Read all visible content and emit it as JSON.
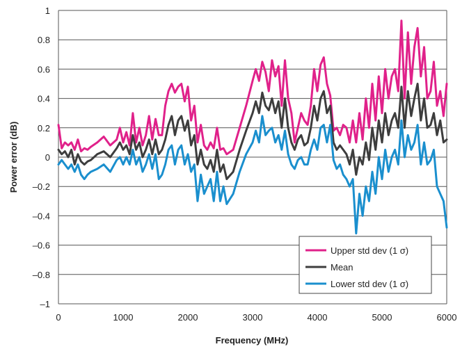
{
  "chart_data": {
    "type": "line",
    "title": "",
    "xlabel": "Frequency (MHz)",
    "ylabel": "Power error (dB)",
    "xlim": [
      0,
      6000
    ],
    "ylim": [
      -1,
      1
    ],
    "x_ticks": [
      0,
      1000,
      2000,
      3000,
      4000,
      5000,
      6000
    ],
    "x_tick_labels": [
      "0",
      "1000",
      "2000",
      "3000",
      "4000",
      "5000",
      "6000"
    ],
    "y_ticks": [
      1,
      0.8,
      0.6,
      0.4,
      0.2,
      0,
      -0.2,
      -0.4,
      -0.6,
      -0.8,
      -1
    ],
    "y_tick_labels": [
      "1",
      "0.8",
      "0.6",
      "0.4",
      "0.2",
      "0",
      "–0.2",
      "–0.4",
      "–0.6",
      "–0.8",
      "–1"
    ],
    "grid": "horizontal",
    "legend_position": "bottom-right",
    "x": [
      0,
      50,
      100,
      150,
      200,
      250,
      300,
      350,
      400,
      450,
      500,
      600,
      700,
      800,
      900,
      950,
      1000,
      1050,
      1100,
      1150,
      1200,
      1250,
      1300,
      1350,
      1400,
      1450,
      1500,
      1550,
      1600,
      1650,
      1700,
      1750,
      1800,
      1850,
      1900,
      1950,
      2000,
      2050,
      2100,
      2150,
      2200,
      2250,
      2300,
      2350,
      2400,
      2450,
      2500,
      2550,
      2600,
      2700,
      2800,
      2900,
      3000,
      3050,
      3100,
      3150,
      3200,
      3250,
      3300,
      3350,
      3400,
      3450,
      3500,
      3550,
      3600,
      3650,
      3700,
      3750,
      3800,
      3850,
      3900,
      3950,
      4000,
      4050,
      4100,
      4150,
      4200,
      4250,
      4300,
      4350,
      4400,
      4450,
      4500,
      4550,
      4600,
      4650,
      4700,
      4750,
      4800,
      4850,
      4900,
      4950,
      5000,
      5050,
      5100,
      5150,
      5200,
      5250,
      5300,
      5350,
      5400,
      5450,
      5500,
      5550,
      5600,
      5650,
      5700,
      5750,
      5800,
      5850,
      5900,
      5950,
      6000
    ],
    "series": [
      {
        "name": "Upper std dev (1 σ)",
        "color": "#e0218a",
        "values": [
          0.22,
          0.06,
          0.1,
          0.08,
          0.1,
          0.05,
          0.12,
          0.04,
          0.06,
          0.05,
          0.07,
          0.1,
          0.14,
          0.08,
          0.12,
          0.2,
          0.1,
          0.17,
          0.08,
          0.3,
          0.1,
          0.2,
          0.08,
          0.15,
          0.28,
          0.12,
          0.26,
          0.15,
          0.15,
          0.35,
          0.45,
          0.5,
          0.44,
          0.48,
          0.5,
          0.38,
          0.48,
          0.25,
          0.35,
          0.1,
          0.22,
          0.08,
          0.05,
          0.1,
          0.06,
          0.2,
          0.05,
          0.06,
          0.02,
          0.05,
          0.2,
          0.35,
          0.52,
          0.6,
          0.52,
          0.65,
          0.58,
          0.45,
          0.66,
          0.55,
          0.62,
          0.35,
          0.66,
          0.4,
          0.3,
          0.1,
          0.2,
          0.3,
          0.25,
          0.22,
          0.35,
          0.6,
          0.45,
          0.63,
          0.68,
          0.5,
          0.42,
          0.18,
          0.2,
          0.15,
          0.22,
          0.2,
          0.1,
          0.25,
          0.1,
          0.3,
          0.12,
          0.4,
          0.2,
          0.5,
          0.25,
          0.55,
          0.3,
          0.6,
          0.4,
          0.55,
          0.6,
          0.45,
          0.93,
          0.4,
          0.85,
          0.5,
          0.75,
          0.88,
          0.55,
          0.75,
          0.4,
          0.45,
          0.65,
          0.35,
          0.45,
          0.28,
          0.5
        ]
      },
      {
        "name": "Mean",
        "color": "#3d3d3d",
        "values": [
          0.05,
          0.02,
          0.04,
          0.0,
          0.05,
          -0.05,
          0.02,
          -0.03,
          -0.05,
          -0.03,
          -0.02,
          0.02,
          0.04,
          0.0,
          0.06,
          0.1,
          0.05,
          0.08,
          0.02,
          0.15,
          0.05,
          0.1,
          0.0,
          0.05,
          0.12,
          0.02,
          0.12,
          0.02,
          0.05,
          0.12,
          0.22,
          0.28,
          0.15,
          0.25,
          0.28,
          0.18,
          0.25,
          0.08,
          0.15,
          -0.05,
          0.05,
          -0.05,
          -0.08,
          -0.02,
          -0.1,
          0.05,
          -0.1,
          -0.05,
          -0.15,
          -0.1,
          0.05,
          0.18,
          0.3,
          0.38,
          0.3,
          0.44,
          0.35,
          0.32,
          0.4,
          0.3,
          0.38,
          0.2,
          0.4,
          0.2,
          0.1,
          0.05,
          0.12,
          0.15,
          0.08,
          0.1,
          0.2,
          0.35,
          0.25,
          0.4,
          0.45,
          0.3,
          0.35,
          0.1,
          0.05,
          0.08,
          0.05,
          0.02,
          -0.05,
          0.05,
          -0.12,
          0.0,
          -0.05,
          0.1,
          -0.02,
          0.2,
          0.05,
          0.25,
          0.1,
          0.3,
          0.15,
          0.25,
          0.3,
          0.2,
          0.48,
          0.2,
          0.45,
          0.28,
          0.4,
          0.5,
          0.25,
          0.4,
          0.2,
          0.22,
          0.3,
          0.15,
          0.25,
          0.1,
          0.12
        ]
      },
      {
        "name": "Lower std dev (1 σ)",
        "color": "#1a8fce",
        "values": [
          -0.05,
          -0.02,
          -0.05,
          -0.08,
          -0.05,
          -0.1,
          -0.05,
          -0.12,
          -0.15,
          -0.12,
          -0.1,
          -0.08,
          -0.05,
          -0.1,
          -0.02,
          0.0,
          -0.05,
          0.0,
          -0.05,
          0.05,
          -0.05,
          0.0,
          -0.1,
          -0.05,
          0.02,
          -0.08,
          0.02,
          -0.15,
          -0.12,
          -0.05,
          0.05,
          0.08,
          -0.05,
          0.05,
          0.08,
          -0.05,
          0.02,
          -0.1,
          -0.05,
          -0.3,
          -0.12,
          -0.25,
          -0.2,
          -0.15,
          -0.3,
          -0.1,
          -0.3,
          -0.2,
          -0.32,
          -0.25,
          -0.1,
          0.02,
          0.1,
          0.18,
          0.1,
          0.28,
          0.15,
          0.18,
          0.2,
          0.1,
          0.15,
          0.05,
          0.18,
          0.02,
          -0.05,
          -0.08,
          -0.02,
          0.0,
          -0.05,
          -0.05,
          0.05,
          0.12,
          0.05,
          0.2,
          0.22,
          0.1,
          0.22,
          -0.02,
          -0.08,
          -0.05,
          -0.12,
          -0.15,
          -0.2,
          -0.15,
          -0.52,
          -0.25,
          -0.4,
          -0.2,
          -0.3,
          -0.1,
          -0.25,
          0.0,
          -0.15,
          0.05,
          -0.1,
          0.0,
          0.05,
          -0.05,
          0.25,
          0.0,
          0.15,
          0.05,
          0.1,
          0.22,
          -0.05,
          0.1,
          -0.05,
          -0.02,
          0.05,
          -0.2,
          -0.25,
          -0.3,
          -0.48
        ]
      }
    ]
  }
}
